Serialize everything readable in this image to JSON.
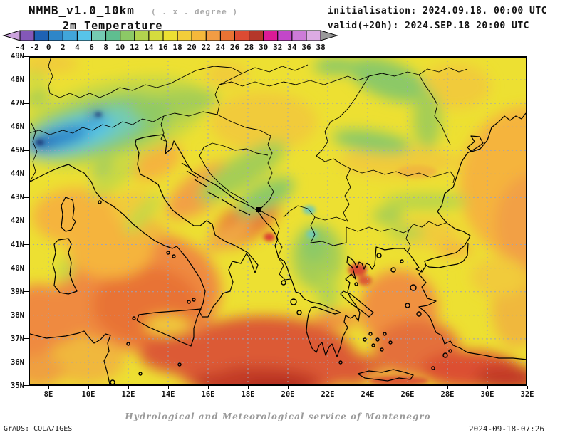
{
  "header": {
    "model_title": "NMMB_v1.0_10km",
    "model_note": "( . x . degree )",
    "subtitle": "2m Temperature",
    "init_line": "initialisation: 2024.09.18. 00:00 UTC",
    "valid_line": "valid(+20h): 2024.SEP.18 20:00 UTC"
  },
  "colorbar": {
    "unit": "degree",
    "values": [
      "-4",
      "-2",
      "0",
      "2",
      "4",
      "6",
      "8",
      "10",
      "12",
      "14",
      "16",
      "18",
      "20",
      "22",
      "24",
      "26",
      "28",
      "30",
      "32",
      "34",
      "36",
      "38"
    ],
    "segment_colors": [
      "#8458B8",
      "#1E62B4",
      "#2E86C8",
      "#41A6DA",
      "#57C4E8",
      "#74CBB2",
      "#5FBE90",
      "#8CC966",
      "#B2D34E",
      "#D5DC3E",
      "#EDE032",
      "#F2CE3A",
      "#F5B83B",
      "#F29C44",
      "#E87334",
      "#DC4B33",
      "#B5372A",
      "#DC1B96",
      "#C247C9",
      "#CD7BD8",
      "#DCABE2"
    ],
    "arrow_left_color": "#CBA3DC",
    "arrow_right_color": "#9A9A9A"
  },
  "map": {
    "lat_labels": [
      "49N",
      "48N",
      "47N",
      "46N",
      "45N",
      "44N",
      "43N",
      "42N",
      "41N",
      "40N",
      "39N",
      "38N",
      "37N",
      "36N",
      "35N"
    ],
    "lon_labels": [
      "8E",
      "10E",
      "12E",
      "14E",
      "16E",
      "18E",
      "20E",
      "22E",
      "24E",
      "26E",
      "28E",
      "30E",
      "32E"
    ],
    "grid_color": "#9aa4c0",
    "coast_color": "#000000",
    "land_base_color": "#EDE032",
    "frame_color": "#000000"
  },
  "footer": {
    "service_line": "Hydrological and Meteorological service of Montenegro",
    "grads_credit": "GrADS: COLA/IGES",
    "timestamp": "2024-09-18-07:26"
  }
}
